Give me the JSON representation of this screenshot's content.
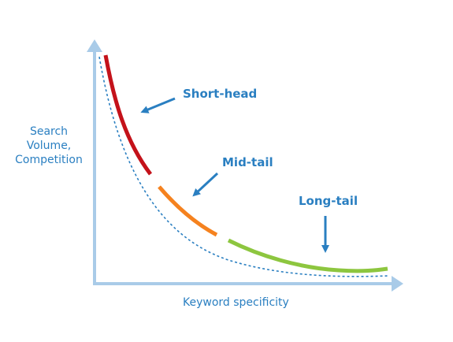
{
  "diagram": {
    "y_axis_label": [
      "Search",
      "Volume,",
      "Competition"
    ],
    "x_axis_label": "Keyword specificity",
    "segments": [
      {
        "label": "Short-head",
        "color": "#c4121a"
      },
      {
        "label": "Mid-tail",
        "color": "#f5821f"
      },
      {
        "label": "Long-tail",
        "color": "#8dc63f"
      }
    ],
    "colors": {
      "axis": "#a9cbe8",
      "text": "#2a7fc1",
      "arrow": "#2a7fc1",
      "dotted_curve": "#2a7fc1"
    }
  }
}
